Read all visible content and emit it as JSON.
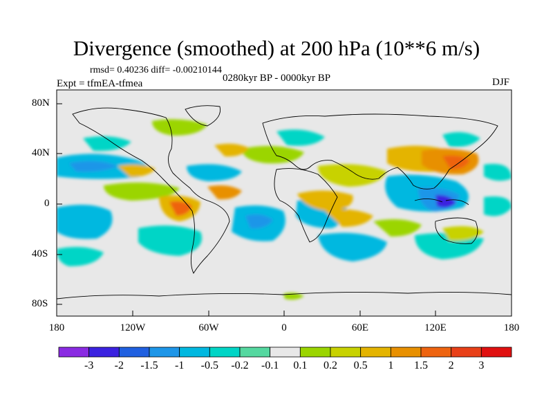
{
  "title": "Divergence (smoothed) at 200 hPa (10**6 m/s)",
  "stats": "rmsd= 0.40236 diff= -0.00210144",
  "experiment": "Expt = tfmEA-tfmea",
  "period": "0280kyr BP - 0000kyr BP",
  "season": "DJF",
  "map": {
    "lat_labels": [
      "80N",
      "40N",
      "0",
      "40S",
      "80S"
    ],
    "lon_labels": [
      "180",
      "120W",
      "60W",
      "0",
      "60E",
      "120E",
      "180"
    ]
  },
  "colorbar": {
    "labels": [
      "-3",
      "-2",
      "-1.5",
      "-1",
      "-0.5",
      "-0.2",
      "-0.1",
      "0.1",
      "0.2",
      "0.5",
      "1",
      "1.5",
      "2",
      "3"
    ],
    "colors": [
      "#8a2be2",
      "#3b22e0",
      "#2060e0",
      "#1e96e8",
      "#00b8e0",
      "#00d5c6",
      "#55d8a0",
      "#e8e8e8",
      "#9bd500",
      "#c8d200",
      "#e4b400",
      "#e89000",
      "#ee6410",
      "#e84018",
      "#e01010"
    ]
  }
}
